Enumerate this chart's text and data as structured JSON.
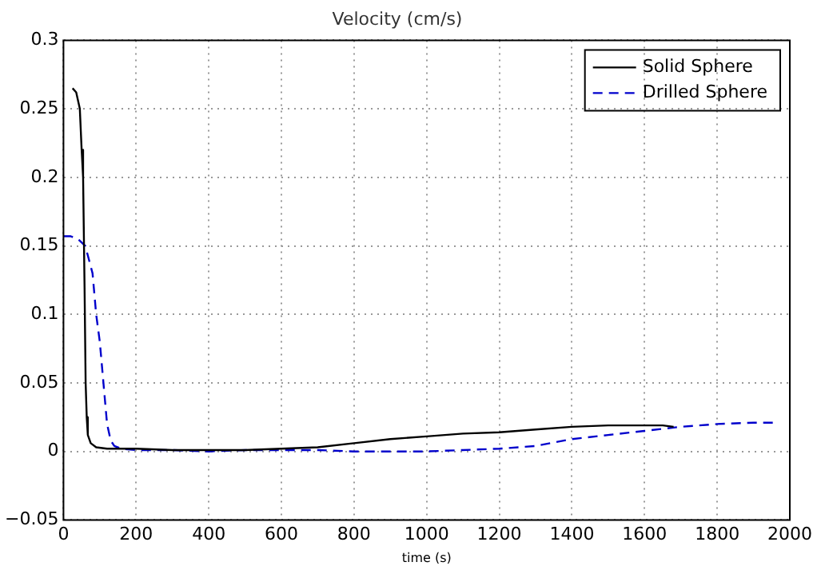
{
  "chart_data": {
    "type": "line",
    "title": "Velocity (cm/s)",
    "xlabel": "time (s)",
    "xlim": [
      0,
      2000
    ],
    "xticks": [
      0,
      200,
      400,
      600,
      800,
      1000,
      1200,
      1400,
      1600,
      1800,
      2000
    ],
    "ylim": [
      -0.05,
      0.3
    ],
    "yticks": [
      -0.05,
      0,
      0.05,
      0.1,
      0.15,
      0.2,
      0.25,
      0.3
    ],
    "grid": true,
    "legend": "top right",
    "marker": "none",
    "series": [
      {
        "name": "Solid Sphere",
        "color": "#000000",
        "line_style": "solid",
        "x": [
          25,
          35,
          45,
          50,
          54,
          58,
          61,
          64,
          67,
          75,
          90,
          120,
          200,
          300,
          400,
          500,
          600,
          700,
          800,
          900,
          1000,
          1100,
          1200,
          1300,
          1400,
          1500,
          1550,
          1600,
          1650,
          1680
        ],
        "values": [
          0.265,
          0.262,
          0.25,
          0.22,
          0.2,
          0.12,
          0.05,
          0.025,
          0.012,
          0.006,
          0.003,
          0.002,
          0.002,
          0.001,
          0.001,
          0.001,
          0.002,
          0.003,
          0.006,
          0.009,
          0.011,
          0.013,
          0.014,
          0.016,
          0.018,
          0.019,
          0.019,
          0.019,
          0.019,
          0.018
        ]
      },
      {
        "name": "Drilled Sphere",
        "color": "#0000cc",
        "line_style": "dashed",
        "x": [
          0,
          20,
          40,
          60,
          80,
          90,
          100,
          110,
          120,
          130,
          140,
          160,
          200,
          300,
          400,
          500,
          600,
          700,
          800,
          900,
          1000,
          1100,
          1200,
          1300,
          1400,
          1500,
          1600,
          1700,
          1800,
          1900,
          1960
        ],
        "values": [
          0.157,
          0.157,
          0.155,
          0.15,
          0.13,
          0.1,
          0.08,
          0.05,
          0.02,
          0.008,
          0.004,
          0.002,
          0.001,
          0.001,
          0.0,
          0.001,
          0.001,
          0.001,
          0.0,
          0.0,
          0.0,
          0.001,
          0.002,
          0.004,
          0.009,
          0.012,
          0.015,
          0.018,
          0.02,
          0.021,
          0.021
        ]
      }
    ]
  }
}
